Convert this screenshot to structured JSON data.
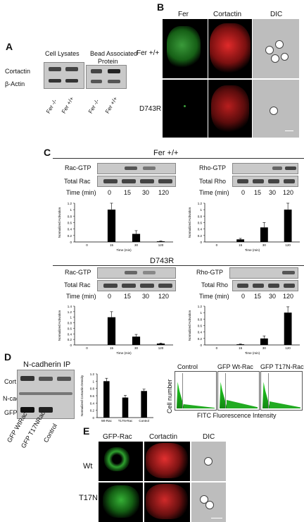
{
  "panels": {
    "A": "A",
    "B": "B",
    "C": "C",
    "D": "D",
    "E": "E"
  },
  "panelA": {
    "cell_lysates": "Cell Lysates",
    "bead_associated": "Bead Associated",
    "protein": "Protein",
    "rows": [
      "Cortactin",
      "β-Actin"
    ],
    "lanes": [
      "Fer -/-",
      "Fer +/+",
      "Fer -/-",
      "Fer +/+"
    ]
  },
  "panelB": {
    "cols": [
      "Fer",
      "Cortactin",
      "DIC"
    ],
    "rows": [
      "Fer +/+",
      "D743R"
    ]
  },
  "panelC": {
    "title_top": "Fer +/+",
    "title_bottom": "D743R",
    "rac_gtp": "Rac-GTP",
    "total_rac": "Total Rac",
    "rho_gtp": "Rho-GTP",
    "total_rho": "Total Rho",
    "time_label": "Time  (min)",
    "times": [
      "0",
      "15",
      "30",
      "120"
    ]
  },
  "panelD": {
    "title": "N-cadherin IP",
    "rows": [
      "Cort",
      "N-cad",
      "GFP"
    ],
    "lanes": [
      "GFP WtRac",
      "GFP T17NRac",
      "Control"
    ],
    "flow_titles": [
      "Control",
      "GFP Wt-Rac",
      "GFP T17N-Rac"
    ],
    "flow_xlabel": "FITC Fluorescence Intensity",
    "flow_ylabel": "Cell number"
  },
  "panelE": {
    "cols": [
      "GFP-Rac",
      "Cortactin",
      "DIC"
    ],
    "rows": [
      "Wt",
      "T17N"
    ]
  },
  "chart_data": [
    {
      "type": "bar",
      "ylabel": "Normalized Activation",
      "xlabel": "Time (min)",
      "categories": [
        "0",
        "15",
        "30",
        "120"
      ],
      "values": [
        0,
        1.0,
        0.25,
        0.02
      ],
      "errors": [
        0,
        0.2,
        0.1,
        0.01
      ],
      "ylim": [
        0,
        1.2
      ],
      "yticks": [
        "0",
        "0.2",
        "0.4",
        "0.6",
        "0.8",
        "1",
        "1.2"
      ]
    },
    {
      "type": "bar",
      "ylabel": "Normalized Activation",
      "xlabel": "Time (min)",
      "categories": [
        "0",
        "15",
        "30",
        "120"
      ],
      "values": [
        0,
        0.08,
        0.45,
        1.0
      ],
      "errors": [
        0,
        0.03,
        0.15,
        0.2
      ],
      "ylim": [
        0,
        1.2
      ],
      "yticks": [
        "0",
        "0.2",
        "0.4",
        "0.6",
        "0.8",
        "1",
        "1.2"
      ]
    },
    {
      "type": "bar",
      "ylabel": "Normalized Activation",
      "xlabel": "Time (min)",
      "categories": [
        "0",
        "15",
        "30",
        "120"
      ],
      "values": [
        0,
        1.0,
        0.3,
        0.05
      ],
      "errors": [
        0,
        0.2,
        0.08,
        0.02
      ],
      "ylim": [
        0,
        1.4
      ],
      "yticks": [
        "0",
        "0.2",
        "0.4",
        "0.6",
        "0.8",
        "1",
        "1.2",
        "1.4"
      ]
    },
    {
      "type": "bar",
      "ylabel": "Normalized Activation",
      "xlabel": "Time (min)",
      "categories": [
        "0",
        "15",
        "30",
        "120"
      ],
      "values": [
        0,
        0.02,
        0.2,
        1.0
      ],
      "errors": [
        0,
        0.01,
        0.08,
        0.18
      ],
      "ylim": [
        0,
        1.2
      ],
      "yticks": [
        "0",
        "0.2",
        "0.4",
        "0.6",
        "0.8",
        "1",
        "1.2"
      ]
    },
    {
      "type": "bar",
      "ylabel": "Normalized Cortactin Density",
      "categories": [
        "Wt-Rac",
        "T17N-Rac",
        "Control"
      ],
      "values": [
        1.0,
        0.55,
        0.73
      ],
      "errors": [
        0.08,
        0.06,
        0.05
      ],
      "ylim": [
        0,
        1.2
      ],
      "yticks": [
        "0",
        "0.2",
        "0.4",
        "0.6",
        "0.8",
        "1",
        "1.2"
      ]
    }
  ]
}
